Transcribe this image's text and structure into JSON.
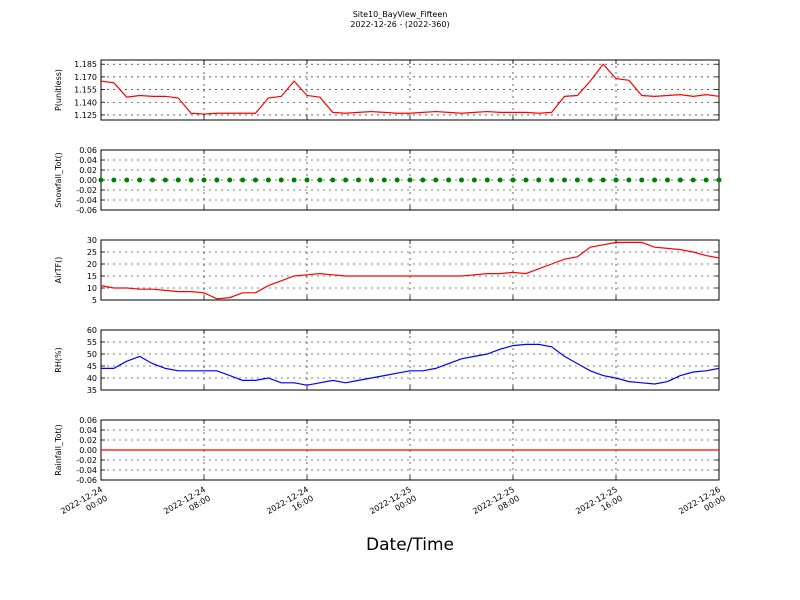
{
  "title": "Site10_BayView_Fifteen",
  "subtitle": "2022-12-26 - (2022-360)",
  "xaxis": {
    "label": "Date/Time",
    "lim": [
      "2022-12-24 00:00",
      "2022-12-26 00:00"
    ],
    "ticks": [
      {
        "value": "2022-12-24 00:00",
        "label": "2022-12-24\n00:00"
      },
      {
        "value": "2022-12-24 08:00",
        "label": "2022-12-24\n08:00"
      },
      {
        "value": "2022-12-24 16:00",
        "label": "2022-12-24\n16:00"
      },
      {
        "value": "2022-12-25 00:00",
        "label": "2022-12-25\n00:00"
      },
      {
        "value": "2022-12-25 08:00",
        "label": "2022-12-25\n08:00"
      },
      {
        "value": "2022-12-25 16:00",
        "label": "2022-12-25\n16:00"
      },
      {
        "value": "2022-12-26 00:00",
        "label": "2022-12-26\n00:00"
      }
    ]
  },
  "x": [
    "2022-12-24 00:00",
    "2022-12-24 01:00",
    "2022-12-24 02:00",
    "2022-12-24 03:00",
    "2022-12-24 04:00",
    "2022-12-24 05:00",
    "2022-12-24 06:00",
    "2022-12-24 07:00",
    "2022-12-24 08:00",
    "2022-12-24 09:00",
    "2022-12-24 10:00",
    "2022-12-24 11:00",
    "2022-12-24 12:00",
    "2022-12-24 13:00",
    "2022-12-24 14:00",
    "2022-12-24 15:00",
    "2022-12-24 16:00",
    "2022-12-24 17:00",
    "2022-12-24 18:00",
    "2022-12-24 19:00",
    "2022-12-24 20:00",
    "2022-12-24 21:00",
    "2022-12-24 22:00",
    "2022-12-24 23:00",
    "2022-12-25 00:00",
    "2022-12-25 01:00",
    "2022-12-25 02:00",
    "2022-12-25 03:00",
    "2022-12-25 04:00",
    "2022-12-25 05:00",
    "2022-12-25 06:00",
    "2022-12-25 07:00",
    "2022-12-25 08:00",
    "2022-12-25 09:00",
    "2022-12-25 10:00",
    "2022-12-25 11:00",
    "2022-12-25 12:00",
    "2022-12-25 13:00",
    "2022-12-25 14:00",
    "2022-12-25 15:00",
    "2022-12-25 16:00",
    "2022-12-25 17:00",
    "2022-12-25 18:00",
    "2022-12-25 19:00",
    "2022-12-25 20:00",
    "2022-12-25 21:00",
    "2022-12-25 22:00",
    "2022-12-25 23:00",
    "2022-12-26 00:00"
  ],
  "chart_data": [
    {
      "type": "line",
      "ylabel": "P(unitless)",
      "color": "#ff0000",
      "grid": true,
      "ylim": [
        1.119,
        1.19
      ],
      "yticks": [
        1.125,
        {
          "value": 1.14,
          "label": "1.140"
        },
        1.155,
        {
          "value": 1.17,
          "label": "1.170"
        },
        1.185
      ],
      "values": [
        1.165,
        1.163,
        1.146,
        1.148,
        1.147,
        1.147,
        1.145,
        1.127,
        1.126,
        1.127,
        1.127,
        1.127,
        1.127,
        1.145,
        1.147,
        1.165,
        1.148,
        1.146,
        1.128,
        1.127,
        1.128,
        1.129,
        1.128,
        1.127,
        1.127,
        1.128,
        1.129,
        1.128,
        1.127,
        1.128,
        1.129,
        1.128,
        1.128,
        1.128,
        1.127,
        1.128,
        1.147,
        1.148,
        1.165,
        1.185,
        1.168,
        1.166,
        1.148,
        1.147,
        1.148,
        1.149,
        1.147,
        1.149,
        1.147
      ]
    },
    {
      "type": "scatter",
      "ylabel": "Snowfall_Tot()",
      "color": "#008000",
      "grid": true,
      "ylim": [
        -0.06,
        0.06
      ],
      "yticks": [
        -0.06,
        -0.04,
        -0.02,
        {
          "value": 0,
          "label": "0.00"
        },
        0.02,
        0.04,
        0.06
      ],
      "values": [
        0,
        0,
        0,
        0,
        0,
        0,
        0,
        0,
        0,
        0,
        0,
        0,
        0,
        0,
        0,
        0,
        0,
        0,
        0,
        0,
        0,
        0,
        0,
        0,
        0,
        0,
        0,
        0,
        0,
        0,
        0,
        0,
        0,
        0,
        0,
        0,
        0,
        0,
        0,
        0,
        0,
        0,
        0,
        0,
        0,
        0,
        0,
        0,
        0
      ]
    },
    {
      "type": "line",
      "ylabel": "AirTF()",
      "color": "#ff0000",
      "grid": true,
      "ylim": [
        5,
        30
      ],
      "yticks": [
        5,
        10,
        15,
        20,
        25,
        30
      ],
      "values": [
        11,
        10,
        10,
        9.5,
        9.5,
        9,
        8.5,
        8.5,
        8,
        5.5,
        6,
        8,
        8,
        11,
        13,
        15,
        15.5,
        16,
        15.5,
        15,
        15,
        15,
        15,
        15,
        15,
        15,
        15,
        15,
        15,
        15.5,
        16,
        16,
        16.5,
        16,
        18,
        20,
        22,
        23,
        27,
        28,
        29,
        29,
        29,
        27,
        26.5,
        26,
        25,
        23.5,
        22.5
      ]
    },
    {
      "type": "line",
      "ylabel": "RH(%)",
      "color": "#0000ff",
      "grid": true,
      "ylim": [
        35,
        60
      ],
      "yticks": [
        35,
        40,
        45,
        50,
        55,
        60
      ],
      "values": [
        44,
        44,
        47,
        49,
        46,
        44,
        43,
        43,
        43,
        43,
        41,
        39,
        39,
        40,
        38,
        38,
        37,
        38,
        39,
        38,
        39,
        40,
        41,
        42,
        43,
        43,
        44,
        46,
        48,
        49,
        50,
        52,
        53.5,
        54,
        54,
        53,
        49,
        46,
        43,
        41,
        40,
        38.5,
        38,
        37.5,
        38.5,
        41,
        42.5,
        43,
        44
      ]
    },
    {
      "type": "line",
      "ylabel": "Rainfall_Tot()",
      "color": "#ff0000",
      "grid": true,
      "ylim": [
        -0.06,
        0.06
      ],
      "yticks": [
        -0.06,
        -0.04,
        -0.02,
        {
          "value": 0,
          "label": "0.00"
        },
        0.02,
        0.04,
        0.06
      ],
      "values": [
        0,
        0,
        0,
        0,
        0,
        0,
        0,
        0,
        0,
        0,
        0,
        0,
        0,
        0,
        0,
        0,
        0,
        0,
        0,
        0,
        0,
        0,
        0,
        0,
        0,
        0,
        0,
        0,
        0,
        0,
        0,
        0,
        0,
        0,
        0,
        0,
        0,
        0,
        0,
        0,
        0,
        0,
        0,
        0,
        0,
        0,
        0,
        0,
        0
      ]
    }
  ]
}
